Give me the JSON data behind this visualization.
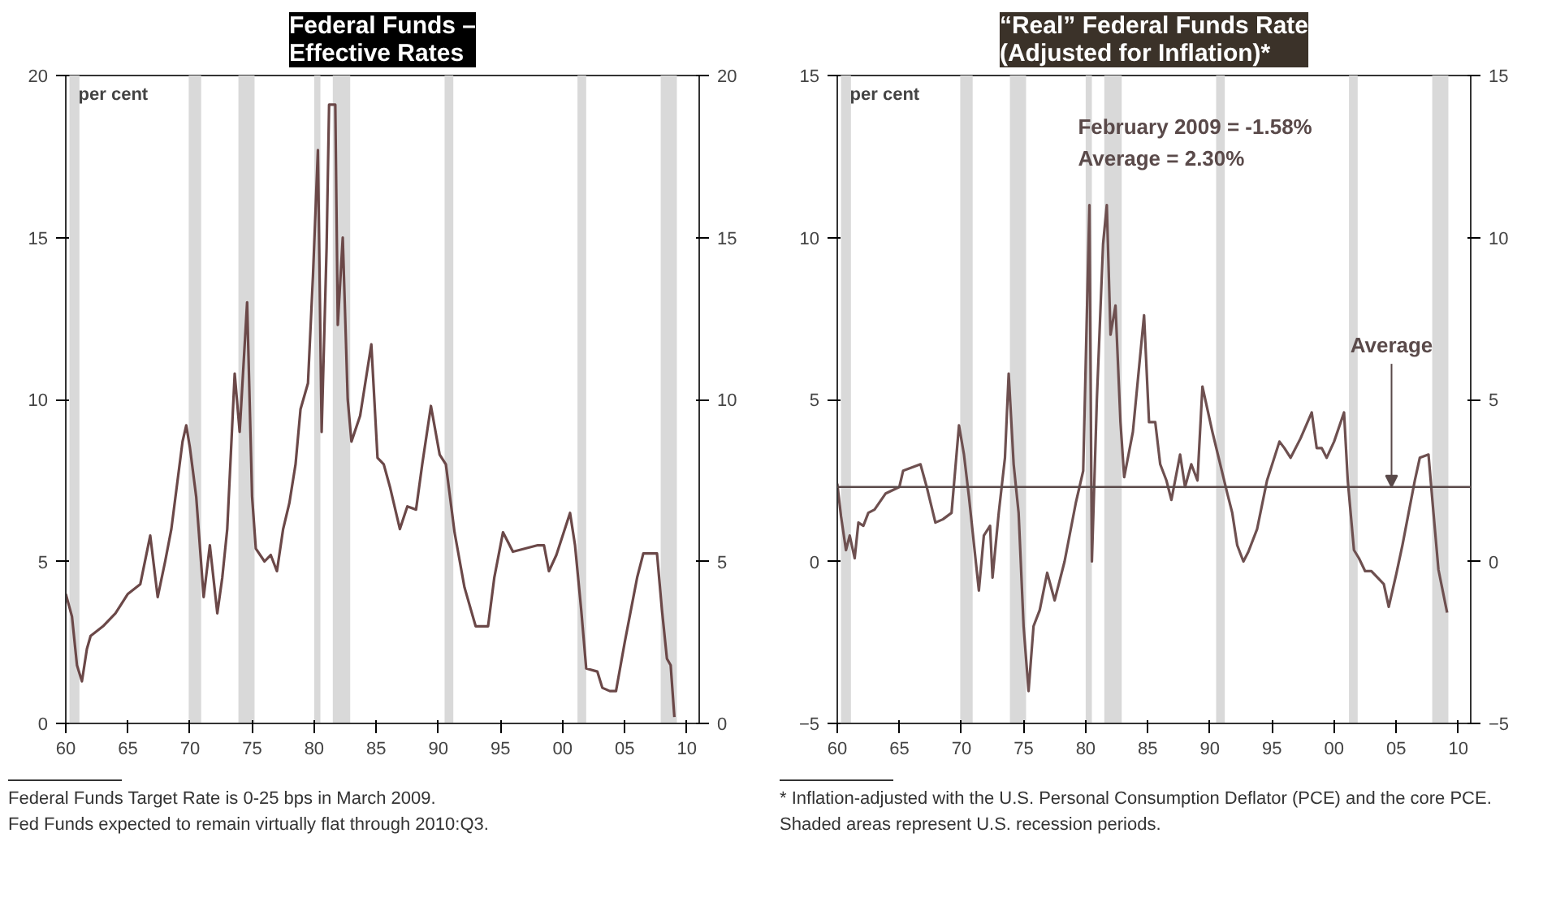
{
  "chart_data": [
    {
      "type": "line",
      "title": "Federal Funds –\nEffective Rates",
      "ylabel": "per cent",
      "x": [
        1960.0,
        1960.5,
        1960.9,
        1961.3,
        1961.7,
        1962.0,
        1963.0,
        1964.0,
        1965.0,
        1966.0,
        1966.8,
        1967.4,
        1968.0,
        1968.5,
        1969.4,
        1969.7,
        1970.0,
        1970.5,
        1971.1,
        1971.6,
        1972.2,
        1972.6,
        1973.0,
        1973.6,
        1974.0,
        1974.6,
        1975.0,
        1975.3,
        1976.0,
        1976.5,
        1977.0,
        1977.5,
        1978.0,
        1978.5,
        1978.9,
        1979.5,
        1979.9,
        1980.3,
        1980.6,
        1981.0,
        1981.2,
        1981.7,
        1981.9,
        1982.3,
        1982.7,
        1983.0,
        1983.7,
        1984.6,
        1985.1,
        1985.6,
        1986.1,
        1986.9,
        1987.5,
        1988.2,
        1988.7,
        1989.4,
        1990.1,
        1990.6,
        1991.3,
        1992.1,
        1993.0,
        1994.0,
        1994.5,
        1995.2,
        1996.0,
        1997.0,
        1998.0,
        1998.5,
        1998.9,
        1999.5,
        2000.6,
        2001.0,
        2001.5,
        2001.9,
        2002.8,
        2003.2,
        2003.8,
        2004.3,
        2005.0,
        2006.0,
        2006.5,
        2007.6,
        2008.0,
        2008.4,
        2008.7,
        2009.0
      ],
      "series": [
        {
          "color": "#6b4848",
          "values": [
            4.0,
            3.3,
            1.8,
            1.3,
            2.3,
            2.7,
            3.0,
            3.4,
            4.0,
            4.3,
            5.8,
            3.9,
            5.0,
            6.0,
            8.7,
            9.2,
            8.5,
            7.0,
            3.9,
            5.5,
            3.4,
            4.5,
            6.0,
            10.8,
            9.0,
            13.0,
            7.0,
            5.4,
            5.0,
            5.2,
            4.7,
            6.0,
            6.8,
            8.0,
            9.7,
            10.5,
            13.8,
            17.7,
            9.0,
            14.7,
            19.1,
            19.1,
            12.3,
            15.0,
            10.0,
            8.7,
            9.5,
            11.7,
            8.2,
            8.0,
            7.3,
            6.0,
            6.7,
            6.6,
            8.0,
            9.8,
            8.3,
            8.0,
            5.9,
            4.2,
            3.0,
            3.0,
            4.5,
            5.9,
            5.3,
            5.4,
            5.5,
            5.5,
            4.7,
            5.2,
            6.5,
            5.5,
            3.5,
            1.7,
            1.6,
            1.1,
            1.0,
            1.0,
            2.5,
            4.5,
            5.25,
            5.25,
            3.5,
            2.0,
            1.8,
            0.2
          ]
        }
      ],
      "xlim": [
        1960,
        2011
      ],
      "xticks": [
        {
          "value": 1960,
          "label": "60"
        },
        {
          "value": 1965,
          "label": "65"
        },
        {
          "value": 1970,
          "label": "70"
        },
        {
          "value": 1975,
          "label": "75"
        },
        {
          "value": 1980,
          "label": "80"
        },
        {
          "value": 1985,
          "label": "85"
        },
        {
          "value": 1990,
          "label": "90"
        },
        {
          "value": 1995,
          "label": "95"
        },
        {
          "value": 2000,
          "label": "00"
        },
        {
          "value": 2005,
          "label": "05"
        },
        {
          "value": 2010,
          "label": "10"
        }
      ],
      "ylim": [
        0,
        20
      ],
      "yticks": [
        0,
        5,
        10,
        15,
        20
      ],
      "y2lim": [
        0,
        20
      ],
      "y2ticks": [
        0,
        5,
        10,
        15,
        20
      ],
      "bands": [
        {
          "axis": "x",
          "from": 1960.3,
          "to": 1961.1,
          "color": "#d9d9d9"
        },
        {
          "axis": "x",
          "from": 1969.9,
          "to": 1970.9,
          "color": "#d9d9d9"
        },
        {
          "axis": "x",
          "from": 1973.9,
          "to": 1975.2,
          "color": "#d9d9d9"
        },
        {
          "axis": "x",
          "from": 1980.0,
          "to": 1980.5,
          "color": "#d9d9d9"
        },
        {
          "axis": "x",
          "from": 1981.5,
          "to": 1982.9,
          "color": "#d9d9d9"
        },
        {
          "axis": "x",
          "from": 1990.5,
          "to": 1991.2,
          "color": "#d9d9d9"
        },
        {
          "axis": "x",
          "from": 2001.2,
          "to": 2001.9,
          "color": "#d9d9d9"
        },
        {
          "axis": "x",
          "from": 2007.9,
          "to": 2009.2,
          "color": "#d9d9d9"
        }
      ],
      "annotations": [
        "Federal Funds Target Rate is 0-25 bps in March 2009.",
        "Fed Funds expected to remain virtually flat through 2010:Q3."
      ],
      "grid": false
    },
    {
      "type": "line",
      "title": "“Real” Federal Funds Rate\n(Adjusted for Inflation)*",
      "subtitle": "February 2009 = -1.58%\nAverage = 2.30%",
      "ylabel": "per cent",
      "x": [
        1960.0,
        1960.3,
        1960.7,
        1961.0,
        1961.4,
        1961.7,
        1962.1,
        1962.5,
        1963.0,
        1963.9,
        1965.0,
        1965.3,
        1966.7,
        1967.2,
        1967.9,
        1968.5,
        1969.2,
        1969.8,
        1970.2,
        1970.6,
        1971.4,
        1971.8,
        1972.3,
        1972.5,
        1973.0,
        1973.5,
        1973.8,
        1974.2,
        1974.6,
        1975.0,
        1975.4,
        1975.8,
        1976.3,
        1976.9,
        1977.5,
        1978.3,
        1979.2,
        1979.8,
        1980.3,
        1980.5,
        1980.9,
        1981.4,
        1981.7,
        1982.0,
        1982.4,
        1982.8,
        1983.1,
        1983.8,
        1984.7,
        1985.1,
        1985.6,
        1986.0,
        1986.5,
        1986.9,
        1987.6,
        1988.0,
        1988.5,
        1989.0,
        1989.4,
        1990.2,
        1991.4,
        1991.8,
        1992.2,
        1992.7,
        1993.1,
        1993.8,
        1994.6,
        1995.6,
        1996.0,
        1996.5,
        1997.3,
        1998.2,
        1998.6,
        1999.0,
        1999.4,
        2000.0,
        2000.8,
        2001.1,
        2001.6,
        2002.0,
        2002.5,
        2003.0,
        2003.5,
        2004.0,
        2004.4,
        2005.0,
        2005.5,
        2006.0,
        2006.5,
        2006.9,
        2007.6,
        2008.0,
        2008.4,
        2009.1
      ],
      "series": [
        {
          "color": "#6e5050",
          "values": [
            2.4,
            1.4,
            0.35,
            0.8,
            0.1,
            1.2,
            1.1,
            1.5,
            1.6,
            2.1,
            2.3,
            2.8,
            3.0,
            2.3,
            1.2,
            1.3,
            1.5,
            4.2,
            3.3,
            2.0,
            -0.9,
            0.8,
            1.1,
            -0.5,
            1.5,
            3.2,
            5.8,
            3.0,
            1.5,
            -2.0,
            -4.0,
            -2.0,
            -1.5,
            -0.35,
            -1.2,
            0.0,
            1.8,
            2.8,
            11.0,
            0.0,
            5.0,
            9.8,
            11.0,
            7.0,
            7.9,
            4.3,
            2.6,
            4.0,
            7.6,
            4.3,
            4.3,
            3.0,
            2.5,
            1.9,
            3.3,
            2.3,
            3.0,
            2.5,
            5.4,
            4.0,
            2.1,
            1.5,
            0.5,
            0.0,
            0.3,
            1.0,
            2.5,
            3.7,
            3.5,
            3.2,
            3.8,
            4.6,
            3.5,
            3.5,
            3.2,
            3.7,
            4.6,
            2.5,
            0.35,
            0.1,
            -0.3,
            -0.3,
            -0.5,
            -0.7,
            -1.4,
            -0.4,
            0.5,
            1.5,
            2.5,
            3.2,
            3.3,
            1.5,
            -0.25,
            -1.58
          ]
        }
      ],
      "xlim": [
        1960,
        2011
      ],
      "xticks": [
        {
          "value": 1960,
          "label": "60"
        },
        {
          "value": 1965,
          "label": "65"
        },
        {
          "value": 1970,
          "label": "70"
        },
        {
          "value": 1975,
          "label": "75"
        },
        {
          "value": 1980,
          "label": "80"
        },
        {
          "value": 1985,
          "label": "85"
        },
        {
          "value": 1990,
          "label": "90"
        },
        {
          "value": 1995,
          "label": "95"
        },
        {
          "value": 2000,
          "label": "00"
        },
        {
          "value": 2005,
          "label": "05"
        },
        {
          "value": 2010,
          "label": "10"
        }
      ],
      "ylim": [
        -5,
        15
      ],
      "yticks": [
        -5,
        0,
        5,
        10,
        15
      ],
      "y2lim": [
        -5,
        15
      ],
      "y2ticks": [
        -5,
        0,
        5,
        10,
        15
      ],
      "ref_lines": [
        {
          "axis": "y",
          "value": 2.3,
          "label": "Average",
          "color": "#5a4a4a"
        }
      ],
      "bands": [
        {
          "axis": "x",
          "from": 1960.3,
          "to": 1961.1,
          "color": "#d9d9d9"
        },
        {
          "axis": "x",
          "from": 1969.9,
          "to": 1970.9,
          "color": "#d9d9d9"
        },
        {
          "axis": "x",
          "from": 1973.9,
          "to": 1975.2,
          "color": "#d9d9d9"
        },
        {
          "axis": "x",
          "from": 1980.0,
          "to": 1980.5,
          "color": "#d9d9d9"
        },
        {
          "axis": "x",
          "from": 1981.5,
          "to": 1982.9,
          "color": "#d9d9d9"
        },
        {
          "axis": "x",
          "from": 1990.5,
          "to": 1991.2,
          "color": "#d9d9d9"
        },
        {
          "axis": "x",
          "from": 2001.2,
          "to": 2001.9,
          "color": "#d9d9d9"
        },
        {
          "axis": "x",
          "from": 2007.9,
          "to": 2009.2,
          "color": "#d9d9d9"
        }
      ],
      "annotations": [
        "* Inflation-adjusted with the U.S. Personal Consumption Deflator (PCE) and the core PCE. Shaded areas represent U.S. recession periods."
      ],
      "grid": false
    }
  ]
}
